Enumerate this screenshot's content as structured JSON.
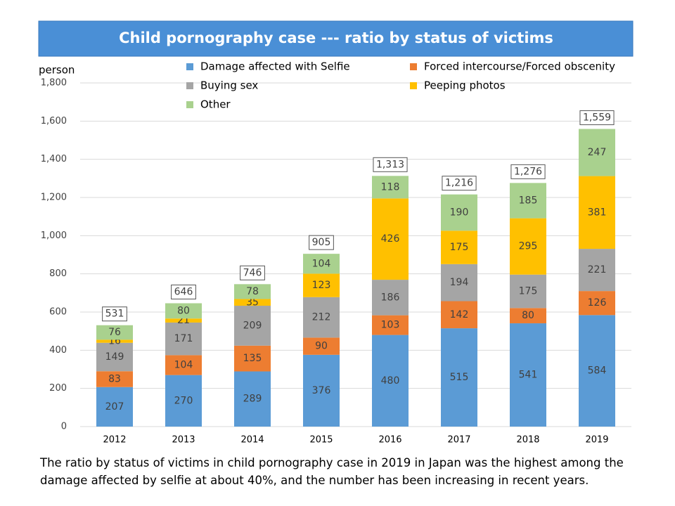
{
  "chart_data": {
    "type": "stacked_bar",
    "title": "Child pornography case --- ratio by status of victims",
    "y_axis_label": "person",
    "categories": [
      "2012",
      "2013",
      "2014",
      "2015",
      "2016",
      "2017",
      "2018",
      "2019"
    ],
    "series": [
      {
        "name": "Damage affected with Selfie",
        "color": "#5b9bd5",
        "values": [
          207,
          270,
          289,
          376,
          480,
          515,
          541,
          584
        ]
      },
      {
        "name": "Forced intercourse/Forced obscenity",
        "color": "#ed7d31",
        "values": [
          83,
          104,
          135,
          90,
          103,
          142,
          80,
          126
        ]
      },
      {
        "name": "Buying sex",
        "color": "#a5a5a5",
        "values": [
          149,
          171,
          209,
          212,
          186,
          194,
          175,
          221
        ]
      },
      {
        "name": "Peeping photos",
        "color": "#ffc000",
        "values": [
          16,
          21,
          35,
          123,
          426,
          175,
          295,
          381
        ]
      },
      {
        "name": "Other",
        "color": "#a9d18e",
        "values": [
          76,
          80,
          78,
          104,
          118,
          190,
          185,
          247
        ]
      }
    ],
    "totals": {
      "values": [
        531,
        646,
        746,
        905,
        1313,
        1216,
        1276,
        1559
      ],
      "value_labels": [
        "531",
        "646",
        "746",
        "905",
        "1,313",
        "1,216",
        "1,276",
        "1,559"
      ]
    },
    "ylim": [
      0,
      1800
    ],
    "yticks": [
      0,
      200,
      400,
      600,
      800,
      {
        "value": 1000,
        "label": "1,000"
      },
      {
        "value": 1200,
        "label": "1,200"
      },
      {
        "value": 1400,
        "label": "1,400"
      },
      {
        "value": 1600,
        "label": "1,600"
      },
      {
        "value": 1800,
        "label": "1,800"
      }
    ],
    "grid": true,
    "caption": "The ratio by status of victims in child pornography case in 2019 in Japan was the highest among the damage affected by selfie at about 40%, and the number has been increasing in recent years."
  }
}
